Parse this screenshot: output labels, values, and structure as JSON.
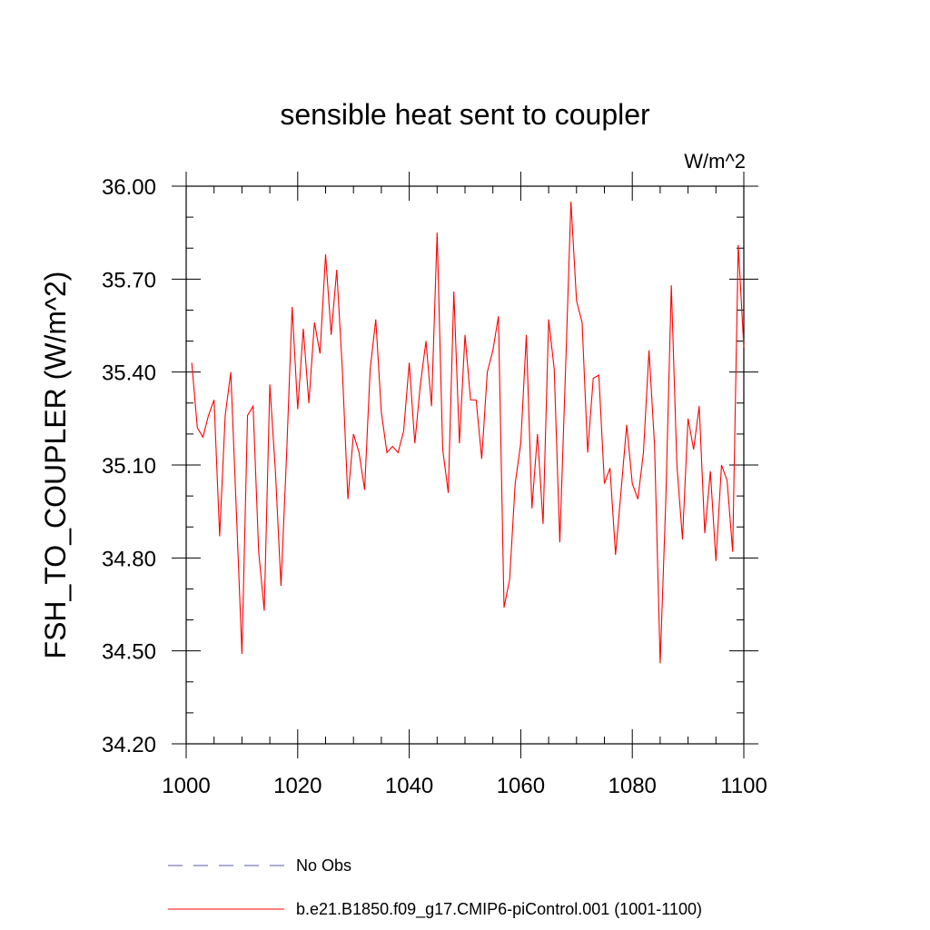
{
  "chart_data": {
    "type": "line",
    "title": "sensible heat sent to coupler",
    "units": "W/m^2",
    "xlabel": "",
    "ylabel": "FSH_TO_COUPLER  (W/m^2)",
    "xlim": [
      1000,
      1100
    ],
    "ylim": [
      34.2,
      36.0
    ],
    "x_ticks": [
      1000,
      1020,
      1040,
      1060,
      1080,
      1100
    ],
    "x_tick_labels": [
      "1000",
      "1020",
      "1040",
      "1060",
      "1080",
      "1100"
    ],
    "y_ticks": [
      34.2,
      34.5,
      34.8,
      35.1,
      35.4,
      35.7,
      36.0
    ],
    "y_tick_labels": [
      "34.20",
      "34.50",
      "34.80",
      "35.10",
      "35.40",
      "35.70",
      "36.00"
    ],
    "grid": false,
    "legend_position": "bottom",
    "series": [
      {
        "name": "No Obs",
        "style": "dashed",
        "color": "#5a5aa8",
        "x": [],
        "values": []
      },
      {
        "name": "b.e21.B1850.f09_g17.CMIP6-piControl.001 (1001-1100)",
        "style": "solid",
        "color": "#ff0000",
        "x": [
          1001,
          1002,
          1003,
          1004,
          1005,
          1006,
          1007,
          1008,
          1009,
          1010,
          1011,
          1012,
          1013,
          1014,
          1015,
          1016,
          1017,
          1018,
          1019,
          1020,
          1021,
          1022,
          1023,
          1024,
          1025,
          1026,
          1027,
          1028,
          1029,
          1030,
          1031,
          1032,
          1033,
          1034,
          1035,
          1036,
          1037,
          1038,
          1039,
          1040,
          1041,
          1042,
          1043,
          1044,
          1045,
          1046,
          1047,
          1048,
          1049,
          1050,
          1051,
          1052,
          1053,
          1054,
          1055,
          1056,
          1057,
          1058,
          1059,
          1060,
          1061,
          1062,
          1063,
          1064,
          1065,
          1066,
          1067,
          1068,
          1069,
          1070,
          1071,
          1072,
          1073,
          1074,
          1075,
          1076,
          1077,
          1078,
          1079,
          1080,
          1081,
          1082,
          1083,
          1084,
          1085,
          1086,
          1087,
          1088,
          1089,
          1090,
          1091,
          1092,
          1093,
          1094,
          1095,
          1096,
          1097,
          1098,
          1099,
          1100
        ],
        "values": [
          35.43,
          35.22,
          35.19,
          35.26,
          35.31,
          34.87,
          35.26,
          35.4,
          34.95,
          34.49,
          35.26,
          35.29,
          34.82,
          34.63,
          35.36,
          35.08,
          34.71,
          35.13,
          35.61,
          35.28,
          35.54,
          35.3,
          35.56,
          35.46,
          35.78,
          35.52,
          35.73,
          35.41,
          34.99,
          35.2,
          35.14,
          35.02,
          35.41,
          35.57,
          35.27,
          35.14,
          35.16,
          35.14,
          35.21,
          35.43,
          35.17,
          35.36,
          35.5,
          35.29,
          35.85,
          35.15,
          35.01,
          35.66,
          35.17,
          35.52,
          35.31,
          35.31,
          35.12,
          35.4,
          35.47,
          35.58,
          34.64,
          34.73,
          35.04,
          35.17,
          35.52,
          34.96,
          35.2,
          34.91,
          35.57,
          35.41,
          34.85,
          35.39,
          35.95,
          35.63,
          35.56,
          35.14,
          35.38,
          35.39,
          35.04,
          35.09,
          34.81,
          35.02,
          35.23,
          35.04,
          34.99,
          35.14,
          35.47,
          35.16,
          34.46,
          34.98,
          35.68,
          35.1,
          34.86,
          35.25,
          35.15,
          35.29,
          34.88,
          35.08,
          34.79,
          35.1,
          35.05,
          34.82,
          35.81,
          35.48
        ]
      }
    ]
  }
}
